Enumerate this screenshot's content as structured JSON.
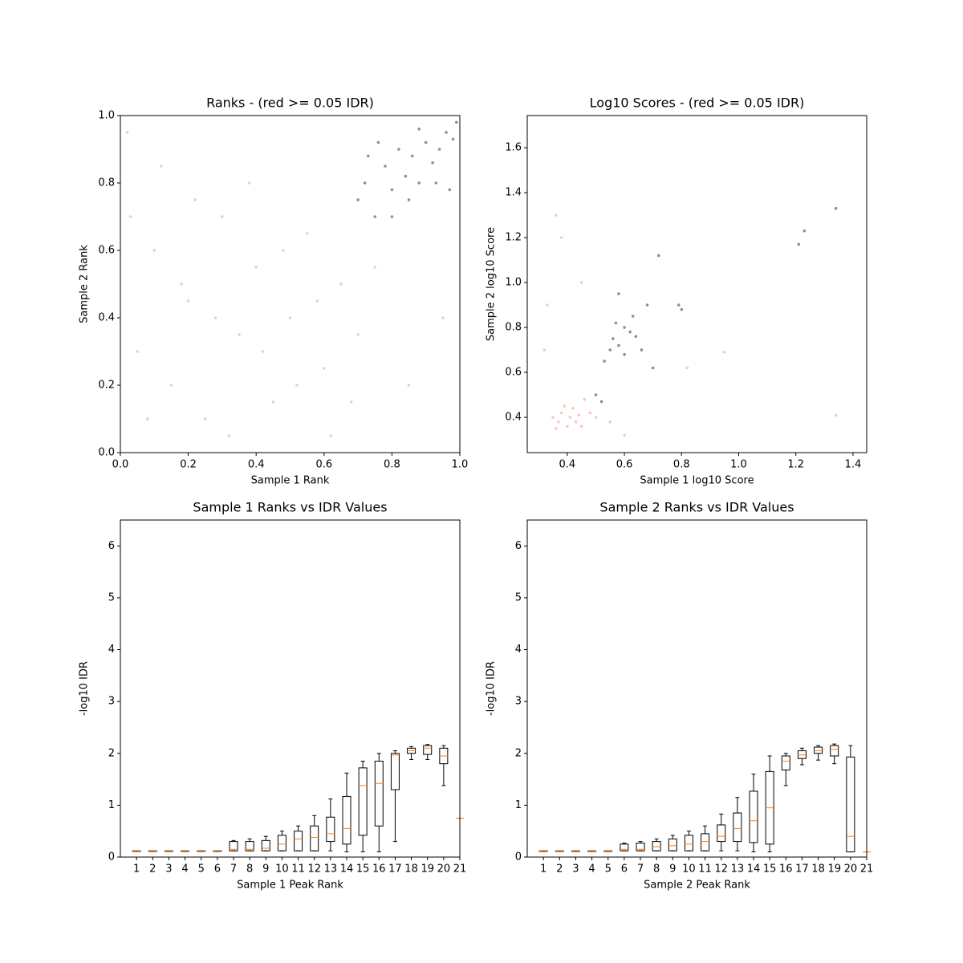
{
  "chart_data": [
    {
      "type": "scatter",
      "title": "Ranks - (red >= 0.05 IDR)",
      "xlabel": "Sample 1 Rank",
      "ylabel": "Sample 2 Rank",
      "xlim": [
        0,
        1
      ],
      "ylim": [
        0,
        1
      ],
      "xticks": [
        {
          "value": 0,
          "label": "0.0"
        },
        0.2,
        0.4,
        0.6,
        0.8,
        {
          "value": 1,
          "label": "1.0"
        }
      ],
      "yticks": [
        {
          "value": 0,
          "label": "0.0"
        },
        0.2,
        0.4,
        0.6,
        0.8,
        {
          "value": 1,
          "label": "1.0"
        }
      ],
      "series": [
        {
          "color": "#fa8072",
          "x": [
            0.05,
            0.1,
            0.15,
            0.2,
            0.25,
            0.3,
            0.35,
            0.4,
            0.45,
            0.5,
            0.55,
            0.6,
            0.65,
            0.02,
            0.12,
            0.22,
            0.32,
            0.42,
            0.52,
            0.62,
            0.7,
            0.08,
            0.18,
            0.28,
            0.38,
            0.48,
            0.58,
            0.68,
            0.75,
            0.85,
            0.95,
            0.03
          ],
          "y": [
            0.3,
            0.6,
            0.2,
            0.45,
            0.1,
            0.7,
            0.35,
            0.55,
            0.15,
            0.4,
            0.65,
            0.25,
            0.5,
            0.95,
            0.85,
            0.75,
            0.05,
            0.3,
            0.2,
            0.05,
            0.35,
            0.1,
            0.5,
            0.4,
            0.8,
            0.6,
            0.45,
            0.15,
            0.55,
            0.2,
            0.4,
            0.7
          ]
        },
        {
          "color": "#444444",
          "x": [
            0.7,
            0.72,
            0.75,
            0.78,
            0.8,
            0.82,
            0.84,
            0.86,
            0.88,
            0.9,
            0.92,
            0.94,
            0.96,
            0.98,
            0.99,
            0.76,
            0.85,
            0.93,
            0.97,
            0.73,
            0.8,
            0.88
          ],
          "y": [
            0.75,
            0.8,
            0.7,
            0.85,
            0.78,
            0.9,
            0.82,
            0.88,
            0.8,
            0.92,
            0.86,
            0.9,
            0.95,
            0.93,
            0.98,
            0.92,
            0.75,
            0.8,
            0.78,
            0.88,
            0.7,
            0.96
          ]
        }
      ]
    },
    {
      "type": "scatter",
      "title": "Log10 Scores - (red >= 0.05 IDR)",
      "xlabel": "Sample 1 log10 Score",
      "ylabel": "Sample 2 log10 Score",
      "xlim": [
        0.26,
        1.448
      ],
      "ylim": [
        0.243,
        1.743
      ],
      "xticks": [
        0.4,
        0.6,
        0.8,
        {
          "value": 1,
          "label": "1.0"
        },
        1.2,
        1.4
      ],
      "yticks": [
        0.4,
        0.6,
        0.8,
        {
          "value": 1,
          "label": "1.0"
        },
        1.2,
        1.4,
        1.6
      ],
      "series": [
        {
          "color": "#fa8072",
          "x": [
            0.35,
            0.37,
            0.38,
            0.4,
            0.41,
            0.42,
            0.43,
            0.44,
            0.45,
            0.39,
            0.36,
            0.46,
            0.48,
            0.5,
            0.55,
            0.33,
            0.36,
            0.38,
            0.45,
            0.32,
            0.6,
            0.82,
            0.95,
            1.34
          ],
          "y": [
            0.4,
            0.38,
            0.42,
            0.36,
            0.4,
            0.44,
            0.38,
            0.41,
            0.36,
            0.45,
            0.35,
            0.48,
            0.42,
            0.4,
            0.38,
            0.9,
            1.3,
            1.2,
            1.0,
            0.7,
            0.32,
            0.62,
            0.69,
            0.41
          ]
        },
        {
          "color": "#444444",
          "x": [
            0.5,
            0.52,
            0.55,
            0.56,
            0.58,
            0.6,
            0.62,
            0.6,
            0.57,
            0.64,
            0.66,
            0.63,
            0.53,
            0.68,
            0.79,
            0.8,
            1.21,
            1.23,
            1.34,
            0.72,
            0.58,
            0.7
          ],
          "y": [
            0.5,
            0.47,
            0.7,
            0.75,
            0.72,
            0.8,
            0.78,
            0.68,
            0.82,
            0.76,
            0.7,
            0.85,
            0.65,
            0.9,
            0.9,
            0.88,
            1.17,
            1.23,
            1.33,
            1.12,
            0.95,
            0.62
          ]
        }
      ]
    },
    {
      "type": "box",
      "title": "Sample 1 Ranks vs IDR Values",
      "xlabel": "Sample 1 Peak Rank",
      "ylabel": "-log10 IDR",
      "xlim": [
        0,
        21
      ],
      "ylim": [
        0,
        6.5
      ],
      "xticks": [
        1,
        2,
        3,
        4,
        5,
        6,
        7,
        8,
        9,
        10,
        11,
        12,
        13,
        14,
        15,
        16,
        17,
        18,
        19,
        20,
        21
      ],
      "yticks": [
        0,
        1,
        2,
        3,
        4,
        5,
        6
      ],
      "whislo": [
        0.11,
        0.11,
        0.11,
        0.11,
        0.11,
        0.11,
        0.12,
        0.12,
        0.12,
        0.12,
        0.12,
        0.12,
        0.12,
        0.1,
        0.1,
        0.1,
        0.3,
        1.88,
        1.88,
        1.38,
        0.75
      ],
      "q1": [
        0.11,
        0.11,
        0.11,
        0.11,
        0.11,
        0.11,
        0.12,
        0.12,
        0.12,
        0.12,
        0.12,
        0.12,
        0.3,
        0.25,
        0.42,
        0.6,
        1.3,
        2.0,
        1.98,
        1.8,
        0.75
      ],
      "median": [
        0.12,
        0.12,
        0.12,
        0.12,
        0.12,
        0.12,
        0.15,
        0.15,
        0.17,
        0.25,
        0.35,
        0.38,
        0.45,
        0.55,
        1.38,
        1.42,
        1.97,
        2.05,
        2.1,
        1.95,
        0.75
      ],
      "q3": [
        0.12,
        0.12,
        0.12,
        0.12,
        0.12,
        0.12,
        0.3,
        0.3,
        0.32,
        0.42,
        0.5,
        0.6,
        0.77,
        1.17,
        1.72,
        1.85,
        2.0,
        2.1,
        2.15,
        2.1,
        0.75
      ],
      "whishi": [
        0.12,
        0.12,
        0.12,
        0.12,
        0.12,
        0.12,
        0.32,
        0.35,
        0.4,
        0.5,
        0.6,
        0.8,
        1.12,
        1.62,
        1.85,
        2.0,
        2.05,
        2.13,
        2.17,
        2.15,
        0.75
      ]
    },
    {
      "type": "box",
      "title": "Sample 2 Ranks vs IDR Values",
      "xlabel": "Sample 2 Peak Rank",
      "ylabel": "-log10 IDR",
      "xlim": [
        0,
        21
      ],
      "ylim": [
        0,
        6.5
      ],
      "xticks": [
        1,
        2,
        3,
        4,
        5,
        6,
        7,
        8,
        9,
        10,
        11,
        12,
        13,
        14,
        15,
        16,
        17,
        18,
        19,
        20,
        21
      ],
      "yticks": [
        0,
        1,
        2,
        3,
        4,
        5,
        6
      ],
      "whislo": [
        0.11,
        0.11,
        0.11,
        0.11,
        0.11,
        0.12,
        0.12,
        0.12,
        0.12,
        0.12,
        0.12,
        0.12,
        0.12,
        0.1,
        0.1,
        1.38,
        1.78,
        1.87,
        1.8,
        0.1,
        0.1
      ],
      "q1": [
        0.11,
        0.11,
        0.11,
        0.11,
        0.11,
        0.12,
        0.12,
        0.12,
        0.12,
        0.12,
        0.12,
        0.3,
        0.3,
        0.28,
        0.25,
        1.68,
        1.9,
        2.0,
        1.95,
        0.1,
        0.1
      ],
      "median": [
        0.12,
        0.12,
        0.12,
        0.12,
        0.12,
        0.15,
        0.15,
        0.2,
        0.22,
        0.25,
        0.3,
        0.4,
        0.55,
        0.7,
        0.95,
        1.85,
        1.97,
        2.05,
        2.08,
        0.4,
        0.1
      ],
      "q3": [
        0.12,
        0.12,
        0.12,
        0.12,
        0.12,
        0.25,
        0.27,
        0.3,
        0.35,
        0.42,
        0.45,
        0.62,
        0.85,
        1.27,
        1.65,
        1.95,
        2.05,
        2.12,
        2.15,
        1.93,
        0.1
      ],
      "whishi": [
        0.12,
        0.12,
        0.12,
        0.12,
        0.12,
        0.27,
        0.3,
        0.35,
        0.42,
        0.5,
        0.6,
        0.83,
        1.15,
        1.6,
        1.95,
        2.0,
        2.1,
        2.15,
        2.18,
        2.15,
        0.1
      ]
    }
  ]
}
